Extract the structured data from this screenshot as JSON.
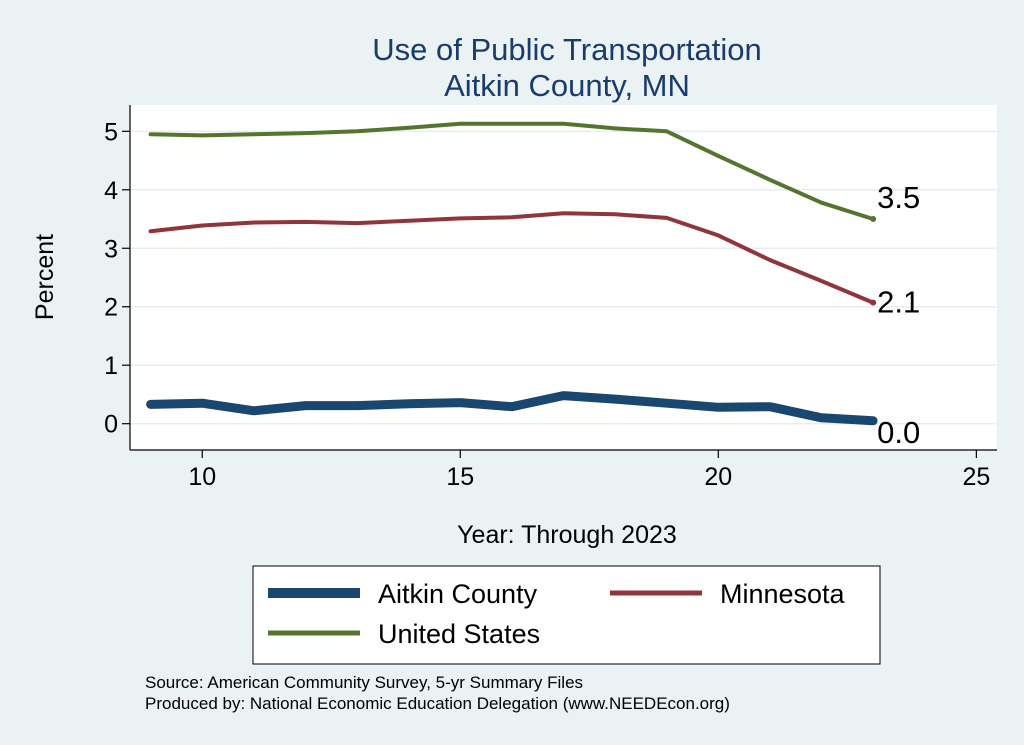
{
  "chart_data": {
    "type": "line",
    "title_line1": "Use of Public Transportation",
    "title_line2": "Aitkin County, MN",
    "xlabel": "Year: Through 2023",
    "ylabel": "Percent",
    "xlim": [
      8.6,
      25.4
    ],
    "ylim": [
      -0.45,
      5.45
    ],
    "x_ticks": [
      "10",
      "15",
      "20",
      "25"
    ],
    "y_ticks": [
      "0",
      "1",
      "2",
      "3",
      "4",
      "5"
    ],
    "grid": true,
    "legend_position": "bottom",
    "x": [
      9,
      10,
      11,
      12,
      13,
      14,
      15,
      16,
      17,
      18,
      19,
      20,
      21,
      22,
      23
    ],
    "series": [
      {
        "name": "Aitkin County",
        "color": "#1a476f",
        "values": [
          0.33,
          0.35,
          0.22,
          0.31,
          0.31,
          0.34,
          0.36,
          0.29,
          0.48,
          0.42,
          0.35,
          0.28,
          0.29,
          0.1,
          0.05
        ],
        "end_label": "0.0"
      },
      {
        "name": "Minnesota",
        "color": "#90353b",
        "values": [
          3.29,
          3.39,
          3.44,
          3.45,
          3.43,
          3.47,
          3.51,
          3.53,
          3.6,
          3.58,
          3.52,
          3.22,
          2.8,
          2.44,
          2.07
        ],
        "end_label": "2.1"
      },
      {
        "name": "United States",
        "color": "#55752f",
        "values": [
          4.95,
          4.93,
          4.95,
          4.97,
          5.0,
          5.06,
          5.13,
          5.13,
          5.13,
          5.05,
          5.0,
          4.58,
          4.17,
          3.78,
          3.5
        ],
        "end_label": "3.5"
      }
    ]
  },
  "notes": {
    "source": "Source: American Community Survey, 5-yr Summary Files",
    "produced": "Produced by: National Economic Education Delegation (www.NEEDEcon.org)"
  }
}
